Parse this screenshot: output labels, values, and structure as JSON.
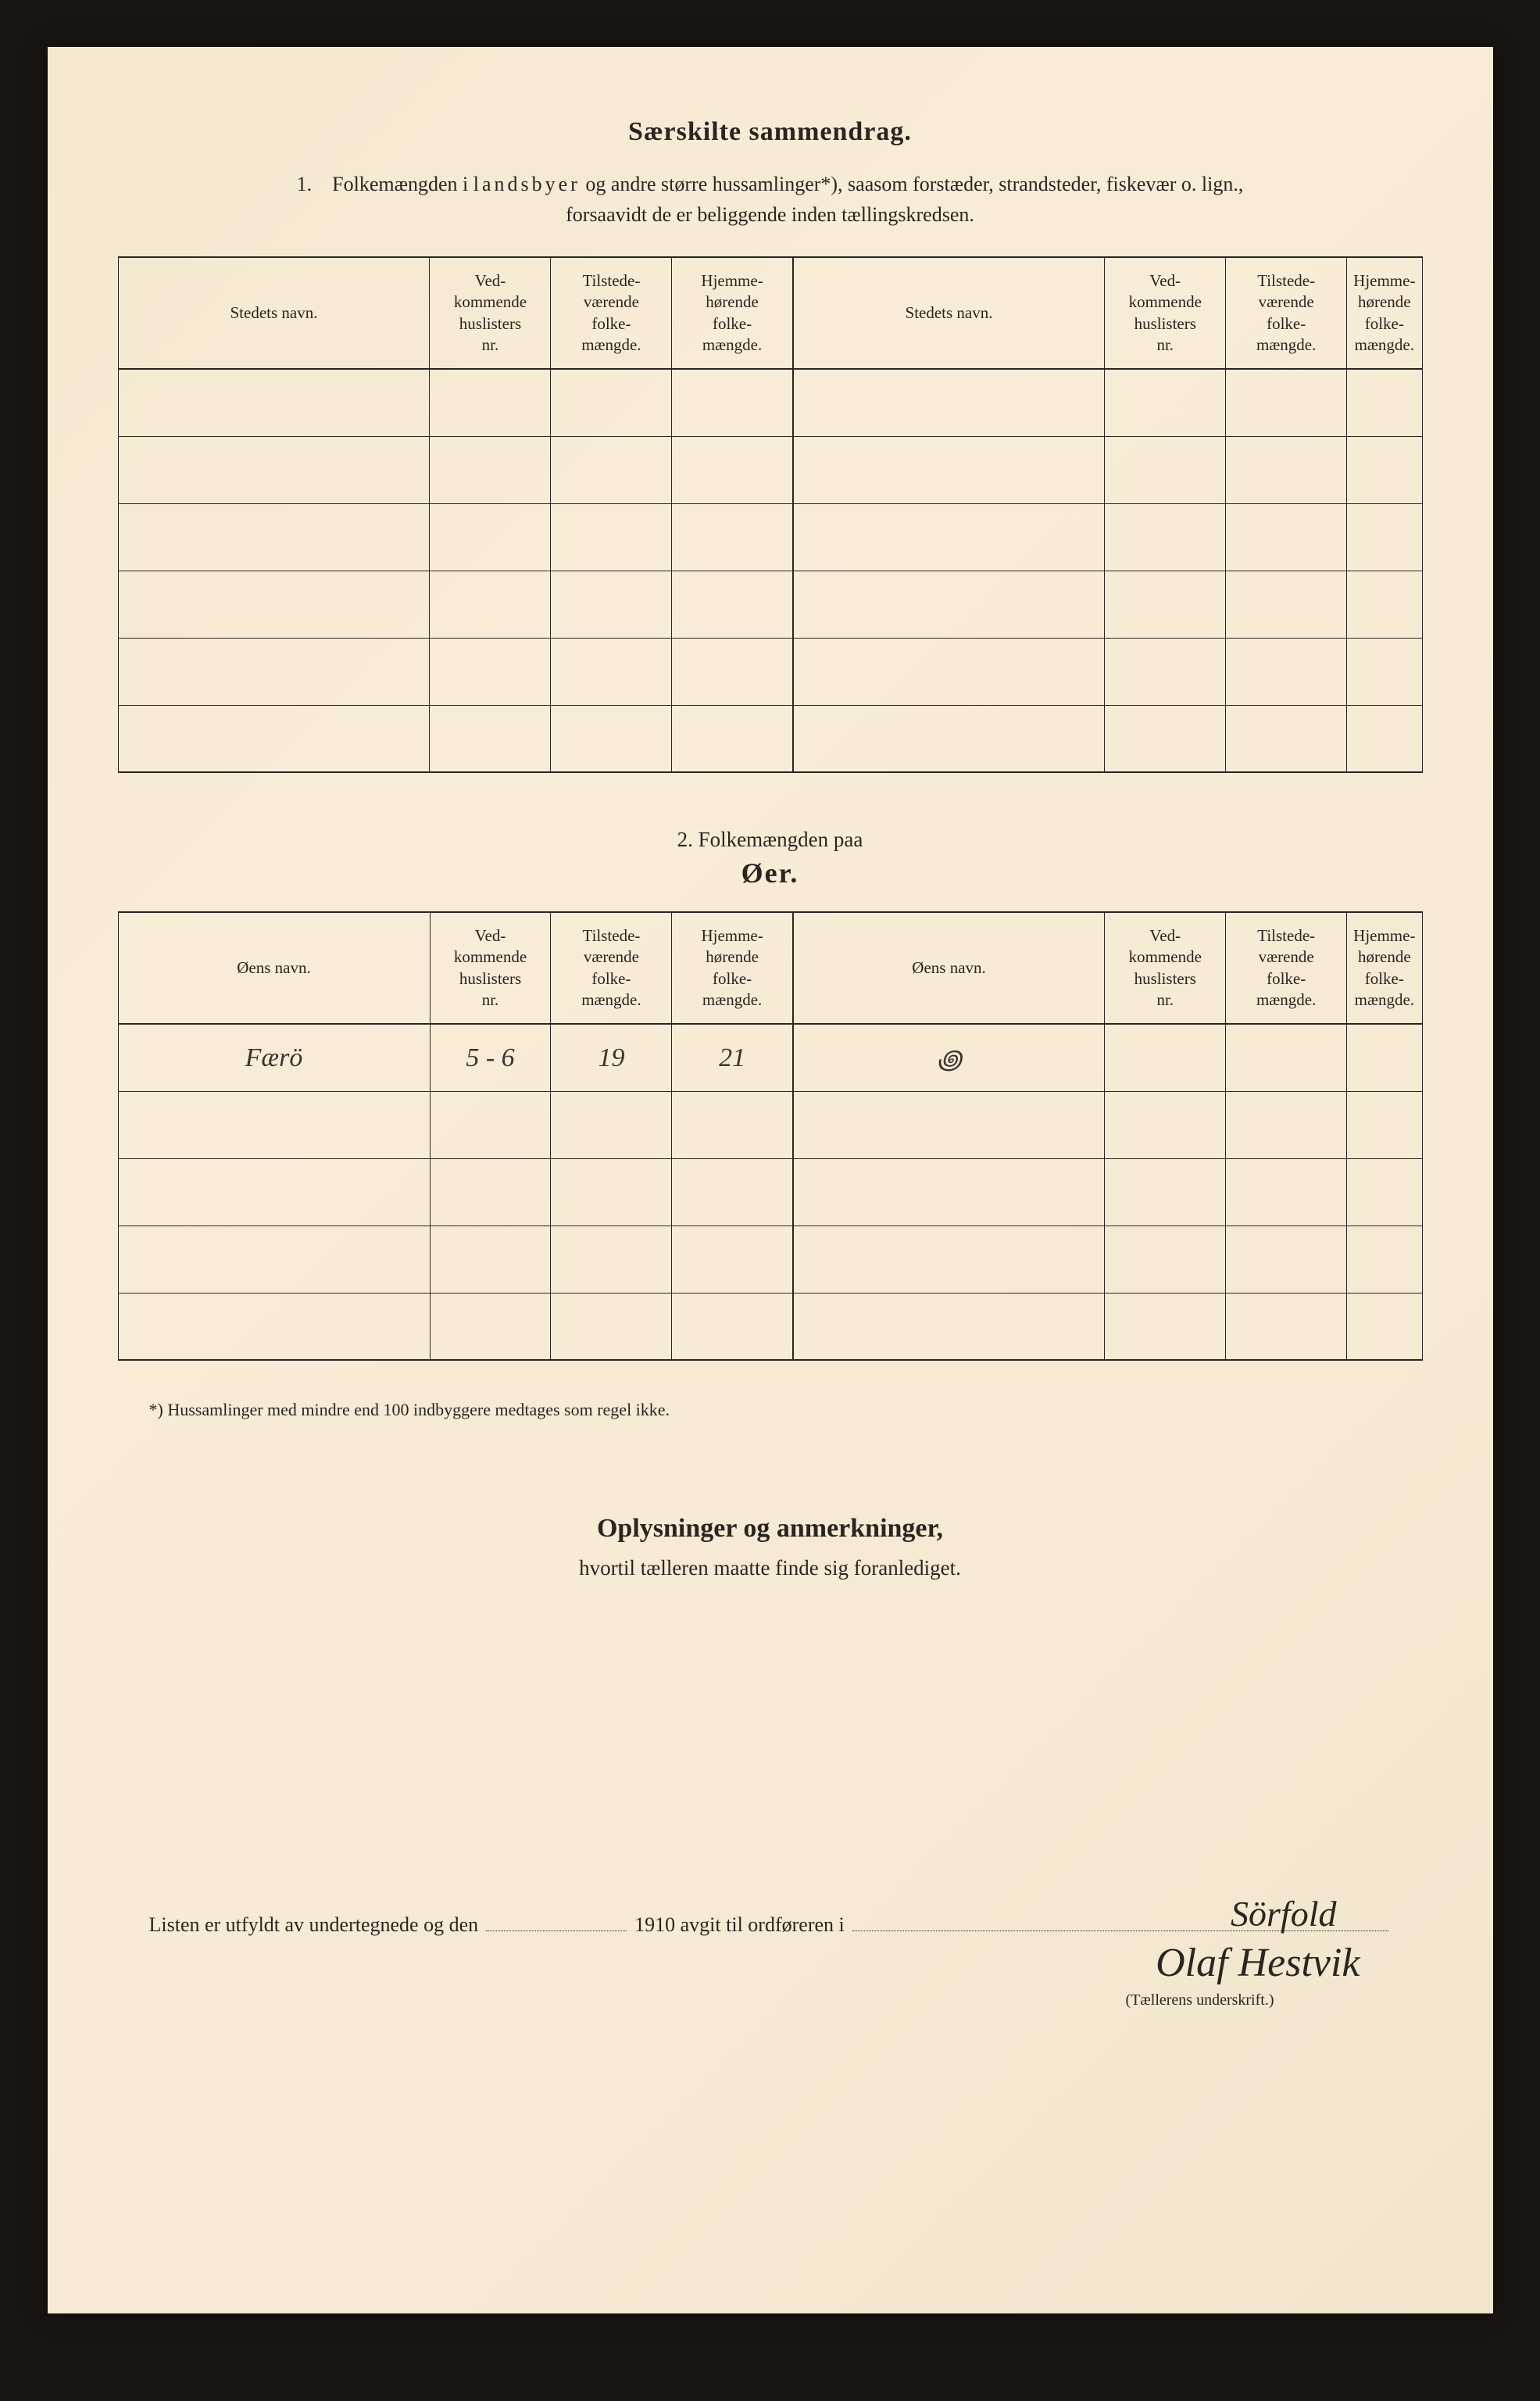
{
  "section1": {
    "title": "Særskilte sammendrag.",
    "intro_num": "1.",
    "intro_a": "Folkemængden i ",
    "intro_spaced": "landsbyer",
    "intro_b": " og andre større hussamlinger*), saasom forstæder, strandsteder, fiskevær o. lign.,",
    "intro_c": "forsaavidt de er beliggende inden tællingskredsen."
  },
  "table_headers": {
    "stedets_navn": "Stedets navn.",
    "vedkommende": "Ved-\nkommende\nhuslisters\nnr.",
    "tilstede": "Tilstede-\nværende\nfolke-\nmængde.",
    "hjemme": "Hjemme-\nhørende\nfolke-\nmængde.",
    "oens_navn": "Øens navn."
  },
  "section2": {
    "prefix": "2.    Folkemængden paa",
    "title": "Øer."
  },
  "table2_rows": [
    {
      "name": "Færö",
      "nr": "5 - 6",
      "til": "19",
      "hjem": "21",
      "name2": "꩜",
      "nr2": "",
      "til2": "",
      "hjem2": ""
    },
    {
      "name": "",
      "nr": "",
      "til": "",
      "hjem": "",
      "name2": "",
      "nr2": "",
      "til2": "",
      "hjem2": ""
    },
    {
      "name": "",
      "nr": "",
      "til": "",
      "hjem": "",
      "name2": "",
      "nr2": "",
      "til2": "",
      "hjem2": ""
    },
    {
      "name": "",
      "nr": "",
      "til": "",
      "hjem": "",
      "name2": "",
      "nr2": "",
      "til2": "",
      "hjem2": ""
    },
    {
      "name": "",
      "nr": "",
      "til": "",
      "hjem": "",
      "name2": "",
      "nr2": "",
      "til2": "",
      "hjem2": ""
    }
  ],
  "footnote": "*)    Hussamlinger med mindre end 100 indbyggere medtages som regel ikke.",
  "section3": {
    "title": "Oplysninger og anmerkninger,",
    "subtitle": "hvortil tælleren maatte finde sig foranlediget."
  },
  "signature": {
    "line_a": "Listen er utfyldt av undertegnede og den",
    "line_b": "1910 avgit til ordføreren i",
    "place": "Sörfold",
    "sig": "Olaf Hestvik",
    "caption": "(Tællerens underskrift.)"
  },
  "colors": {
    "paper": "#f6ead4",
    "ink": "#2a2520",
    "background": "#1a1512"
  }
}
